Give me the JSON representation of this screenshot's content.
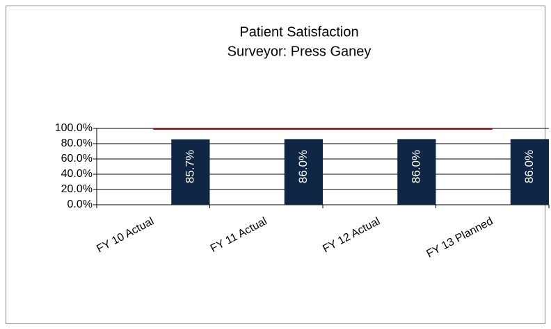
{
  "chart_data": {
    "type": "bar",
    "title": [
      "Patient Satisfaction",
      "Surveyor: Press Ganey"
    ],
    "categories": [
      "FY 10 Actual",
      "FY 11 Actual",
      "FY 12 Actual",
      "FY 13 Planned"
    ],
    "values": [
      85.7,
      86.0,
      86.0,
      86.0
    ],
    "value_labels": [
      "85.7%",
      "86.0%",
      "86.0%",
      "86.0%"
    ],
    "color": "#0f2744",
    "target_line": {
      "color": "#c00000",
      "values": [
        99,
        99,
        99,
        99
      ]
    },
    "ylim": [
      0,
      100
    ],
    "yticks": [
      {
        "value": 0,
        "label": "0.0%"
      },
      {
        "value": 20,
        "label": "20.0%"
      },
      {
        "value": 40,
        "label": "40.0%"
      },
      {
        "value": 60,
        "label": "60.0%"
      },
      {
        "value": 80,
        "label": "80.0%"
      },
      {
        "value": 100,
        "label": "100.0%"
      }
    ],
    "grid": true
  }
}
